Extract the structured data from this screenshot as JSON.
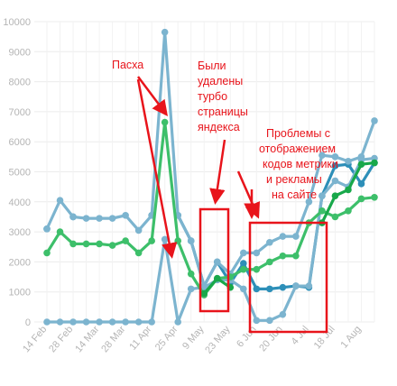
{
  "chart_data": {
    "type": "line",
    "x": [
      "14 Feb",
      "21 Feb",
      "28 Feb",
      "7 Mar",
      "14 Mar",
      "21 Mar",
      "28 Mar",
      "4 Apr",
      "11 Apr",
      "18 Apr",
      "25 Apr",
      "2 May",
      "9 May",
      "16 May",
      "23 May",
      "30 May",
      "6 Jun",
      "13 Jun",
      "20 Jun",
      "27 Jun",
      "4 Jul",
      "11 Jul",
      "18 Jul",
      "25 Jul",
      "1 Aug",
      "8 Aug"
    ],
    "x_tick_labels": [
      "14 Feb",
      "28 Feb",
      "14 Mar",
      "28 Mar",
      "11 Apr",
      "25 Apr",
      "9 May",
      "23 May",
      "6 Jun",
      "20 Jun",
      "4 Jul",
      "18 Jul",
      "1 Aug"
    ],
    "y_ticks": [
      0,
      1000,
      2000,
      3000,
      4000,
      5000,
      6000,
      7000,
      8000,
      9000,
      10000
    ],
    "ylim": [
      0,
      10000
    ],
    "grid": true,
    "series": [
      {
        "color": "#2d8fb8",
        "values": [
          3100,
          null,
          3500,
          null,
          null,
          null,
          null,
          null,
          3550,
          null,
          3550,
          2700,
          1200,
          2000,
          1300,
          1950,
          1100,
          1100,
          1150,
          1200,
          1150,
          4200,
          5200,
          5250,
          4600,
          5300
        ]
      },
      {
        "color": "#7cb4cf",
        "values": [
          3100,
          4050,
          3500,
          3450,
          3450,
          3450,
          3550,
          3050,
          3550,
          9650,
          3550,
          2700,
          1200,
          2000,
          1600,
          2300,
          2300,
          2650,
          2850,
          2850,
          4000,
          5550,
          5500,
          5350,
          5500,
          6700
        ]
      },
      {
        "color": "#7cb4cf",
        "values": [
          0,
          0,
          0,
          0,
          0,
          0,
          0,
          0,
          0,
          2750,
          0,
          1100,
          1150,
          1400,
          1400,
          1100,
          50,
          50,
          250,
          1200,
          1200,
          4200,
          4700,
          4500,
          5400,
          5450
        ]
      },
      {
        "color": "#3dbf6a",
        "values": [
          2300,
          3000,
          2600,
          2600,
          2600,
          2550,
          2700,
          2300,
          2700,
          6650,
          2700,
          1600,
          900,
          1450,
          1500,
          1750,
          1750,
          2000,
          2200,
          2200,
          3300,
          3700,
          3500,
          3700,
          4100,
          4150
        ]
      },
      {
        "color": "#18a84a",
        "values": [
          null,
          null,
          null,
          null,
          null,
          null,
          null,
          null,
          null,
          null,
          null,
          null,
          950,
          1450,
          1150,
          null,
          null,
          null,
          null,
          null,
          null,
          3300,
          4200,
          4400,
          5250,
          5300
        ]
      }
    ],
    "annotations": [
      {
        "text": "Пасха",
        "color": "#e8141b"
      },
      {
        "text": "Были\nудалены\nтурбо\nстраницы\nяндекса",
        "color": "#e8141b"
      },
      {
        "text": "Проблемы с\nотображением\nкодов метрики\nи рекламы\nна сайте",
        "color": "#e8141b"
      }
    ]
  }
}
